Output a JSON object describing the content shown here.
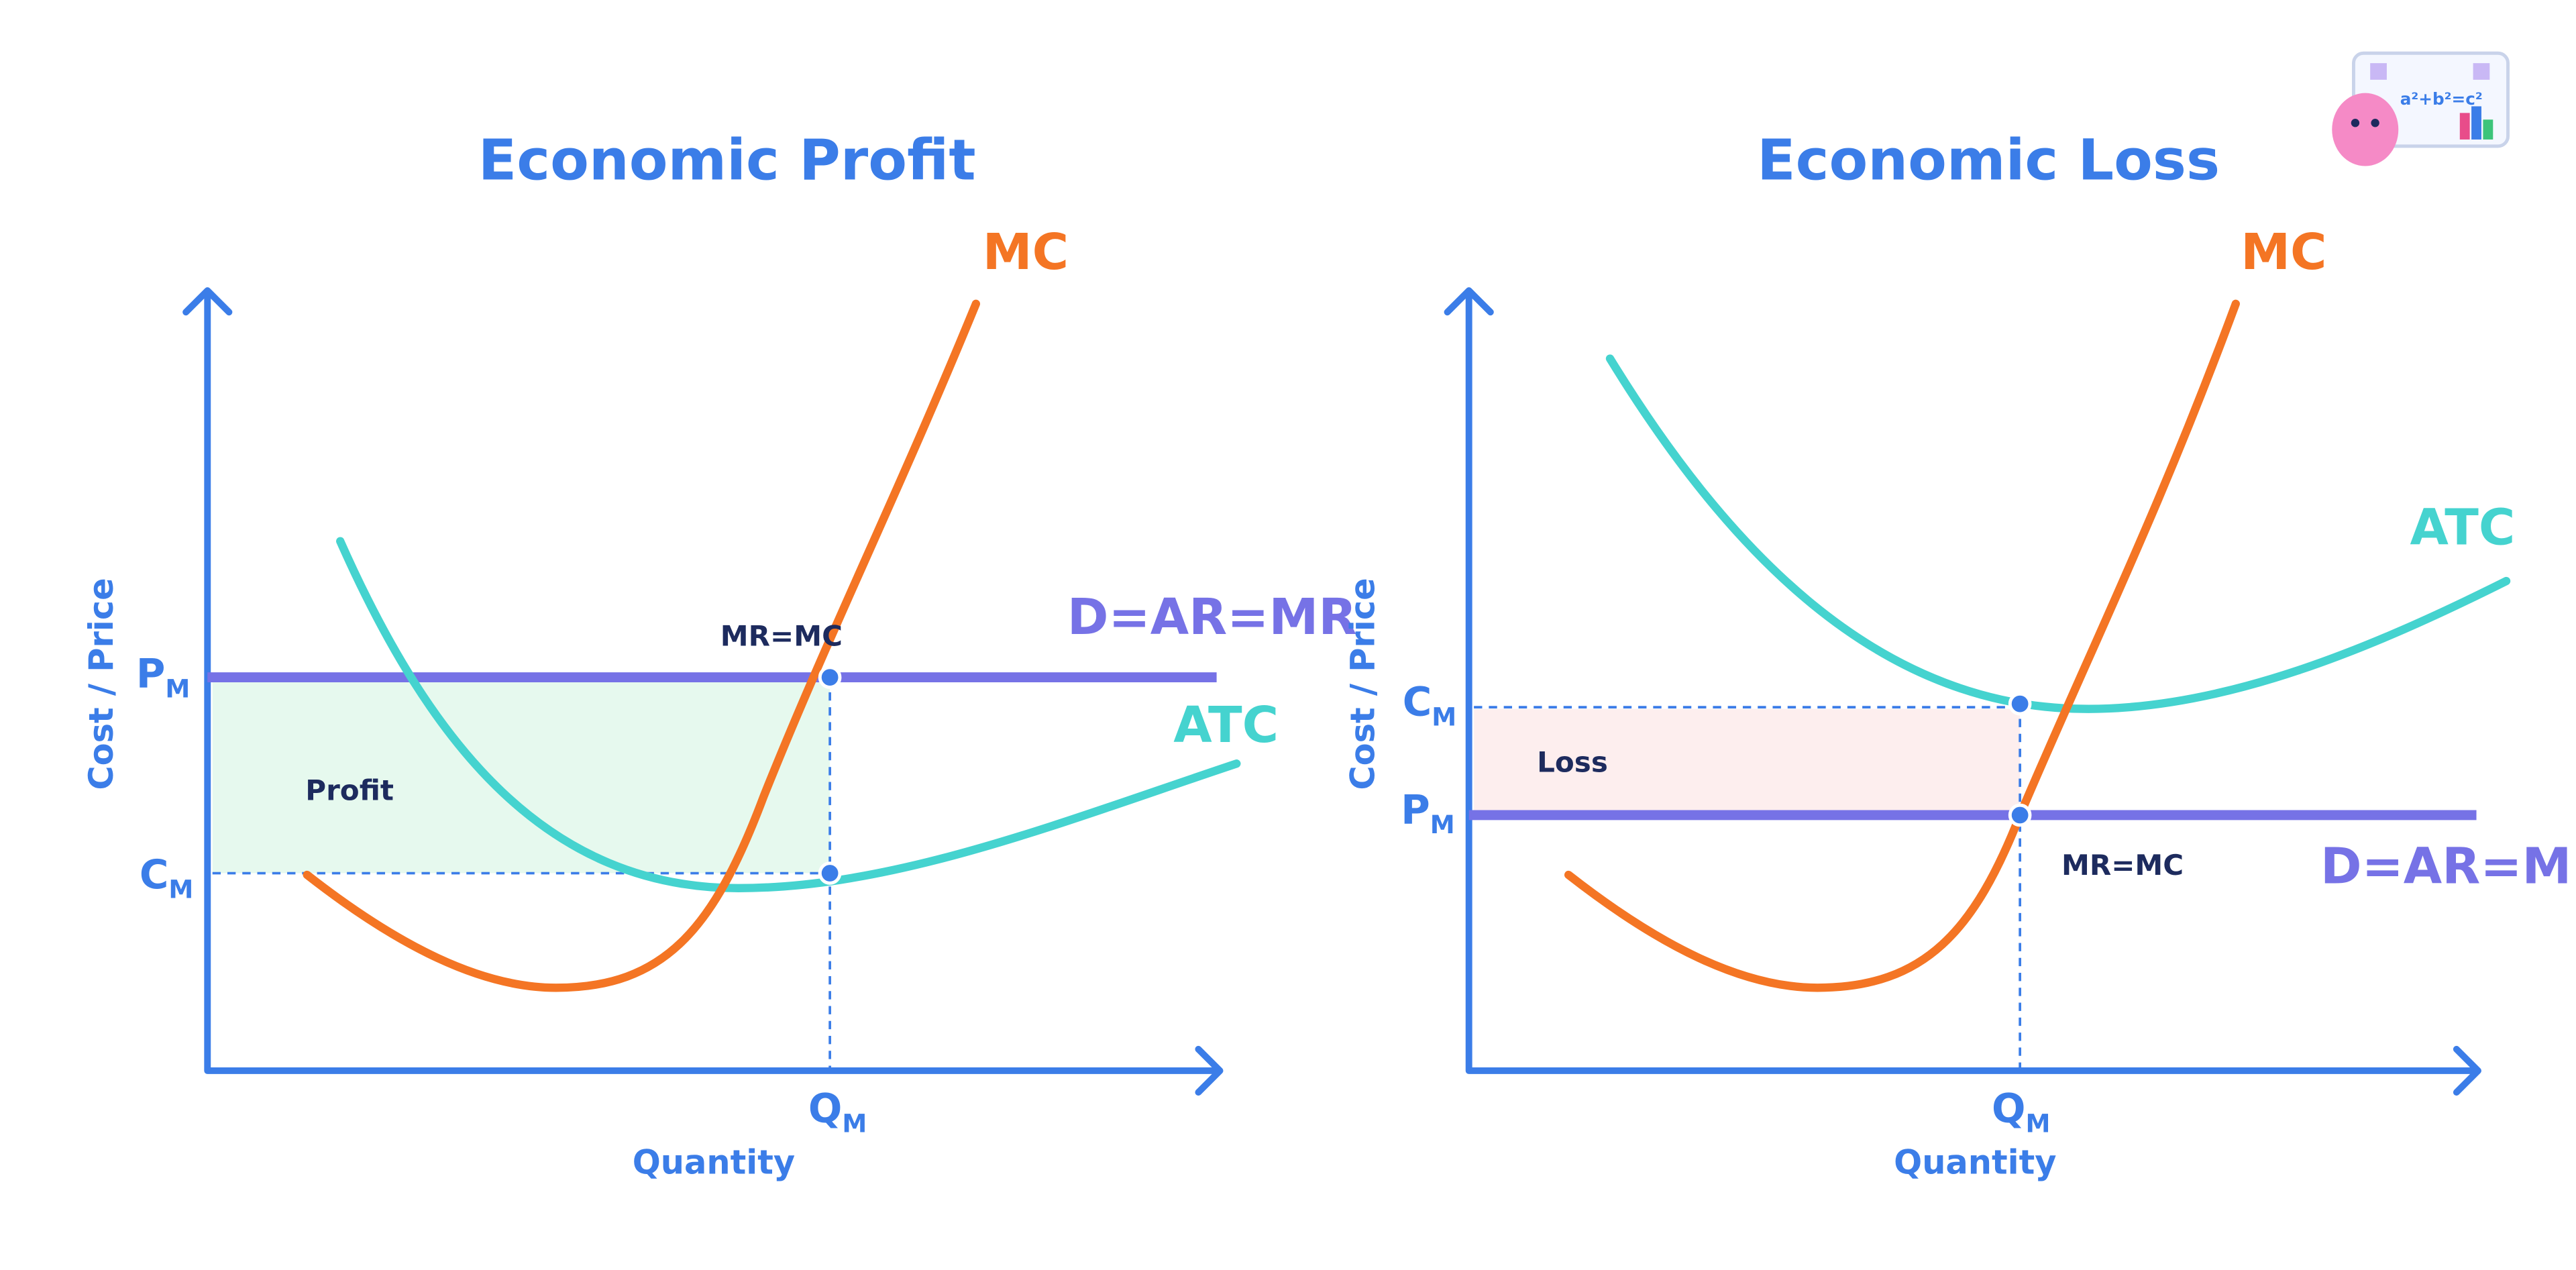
{
  "logo": {
    "formula": "a²+b²=c²"
  },
  "panels": [
    {
      "title": "Economic Profit",
      "y_axis_label": "Cost / Price",
      "x_axis_label": "Quantity",
      "curves": {
        "mc": "MC",
        "atc": "ATC",
        "demand": "D=AR=MR"
      },
      "intersection_label": "MR=MC",
      "area_label": "Profit",
      "price_label": {
        "main": "P",
        "sub": "M"
      },
      "cost_label": {
        "main": "C",
        "sub": "M"
      },
      "quantity_label": {
        "main": "Q",
        "sub": "M"
      }
    },
    {
      "title": "Economic Loss",
      "y_axis_label": "Cost / Price",
      "x_axis_label": "Quantity",
      "curves": {
        "mc": "MC",
        "atc": "ATC",
        "demand": "D=AR=MR"
      },
      "intersection_label": "MR=MC",
      "area_label": "Loss",
      "price_label": {
        "main": "P",
        "sub": "M"
      },
      "cost_label": {
        "main": "C",
        "sub": "M"
      },
      "quantity_label": {
        "main": "Q",
        "sub": "M"
      }
    }
  ]
}
